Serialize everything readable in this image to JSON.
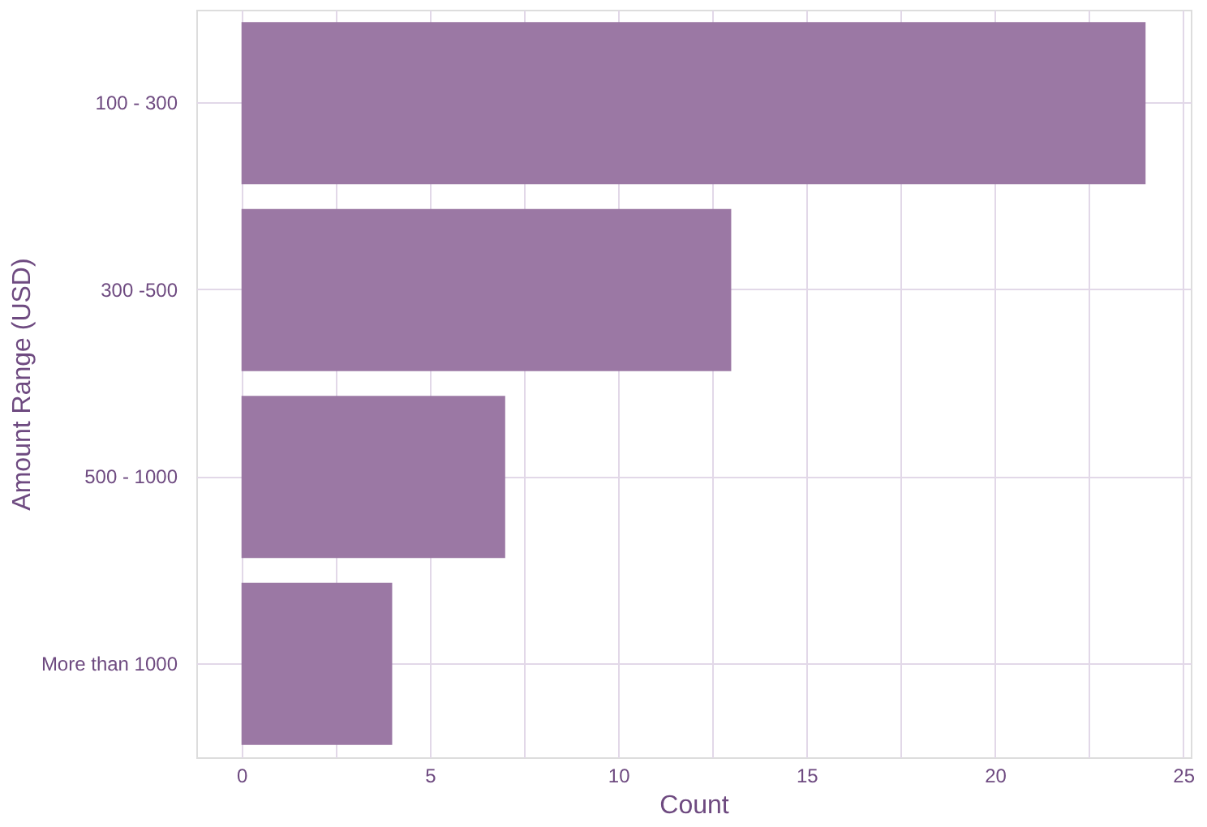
{
  "chart_data": {
    "type": "bar",
    "orientation": "horizontal",
    "xlabel": "Count",
    "ylabel": "Amount Range (USD)",
    "categories": [
      "100 - 300",
      "300 -500",
      "500 - 1000",
      "More than 1000"
    ],
    "values": [
      24,
      13,
      7,
      4
    ],
    "color": "#9b78a4",
    "xlim": [
      -1.2,
      25.2
    ],
    "xticks": [
      0,
      {
        "value": 2.5,
        "label": null
      },
      5,
      {
        "value": 7.5,
        "label": null
      },
      10,
      {
        "value": 12.5,
        "label": null
      },
      15,
      {
        "value": 17.5,
        "label": null
      },
      20,
      {
        "value": 22.5,
        "label": null
      },
      25
    ],
    "grid": true
  }
}
